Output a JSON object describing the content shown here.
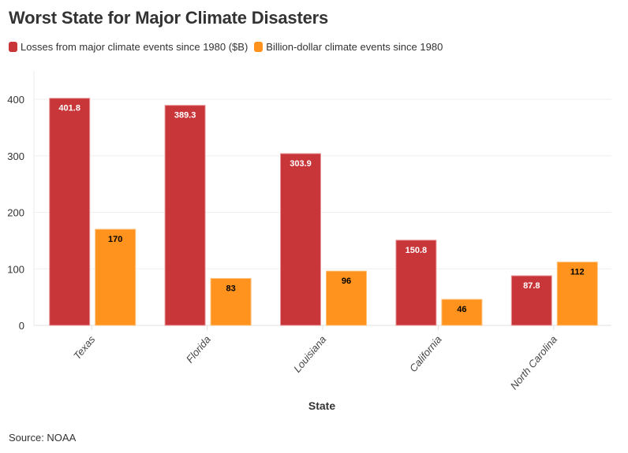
{
  "chart_data": {
    "type": "bar",
    "title": "Worst State for Major Climate Disasters",
    "xlabel": "State",
    "ylabel": "",
    "categories": [
      "Texas",
      "Florida",
      "Louisiana",
      "California",
      "North Carolina"
    ],
    "series": [
      {
        "name": "Losses from major climate events since 1980 ($B)",
        "color": "#c8363a",
        "values": [
          401.8,
          389.3,
          303.9,
          150.8,
          87.8
        ],
        "labels": [
          "401.8",
          "389.3",
          "303.9",
          "150.8",
          "87.8"
        ],
        "label_color": "#ffffff"
      },
      {
        "name": "Billion-dollar climate events since 1980",
        "color": "#ff931e",
        "values": [
          170,
          83,
          96,
          46,
          112
        ],
        "labels": [
          "170",
          "83",
          "96",
          "46",
          "112"
        ],
        "label_color": "#000000"
      }
    ],
    "yticks": [
      0,
      100,
      200,
      300,
      400
    ],
    "ylim": [
      0,
      450
    ],
    "grid": true,
    "legend_position": "top-left",
    "source": "Source: NOAA"
  }
}
